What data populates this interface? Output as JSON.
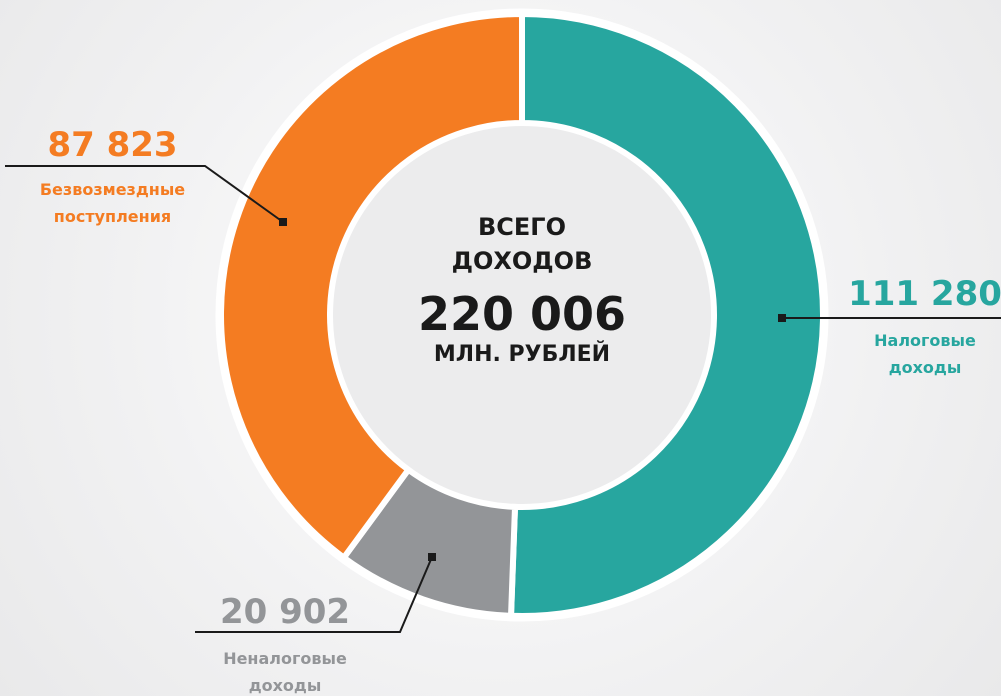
{
  "chart_data": {
    "type": "pie",
    "center_lines": [
      "ВСЕГО",
      "ДОХОДОВ"
    ],
    "total_label": "220 006",
    "unit": "МЛН. РУБЛЕЙ",
    "categories": [
      "Налоговые доходы",
      "Неналоговые доходы",
      "Безвозмездные поступления"
    ],
    "values": [
      111280,
      20902,
      87823
    ],
    "value_labels": [
      "111 280",
      "20 902",
      "87 823"
    ],
    "colors": [
      "#27a69f",
      "#939598",
      "#f47c22"
    ]
  }
}
